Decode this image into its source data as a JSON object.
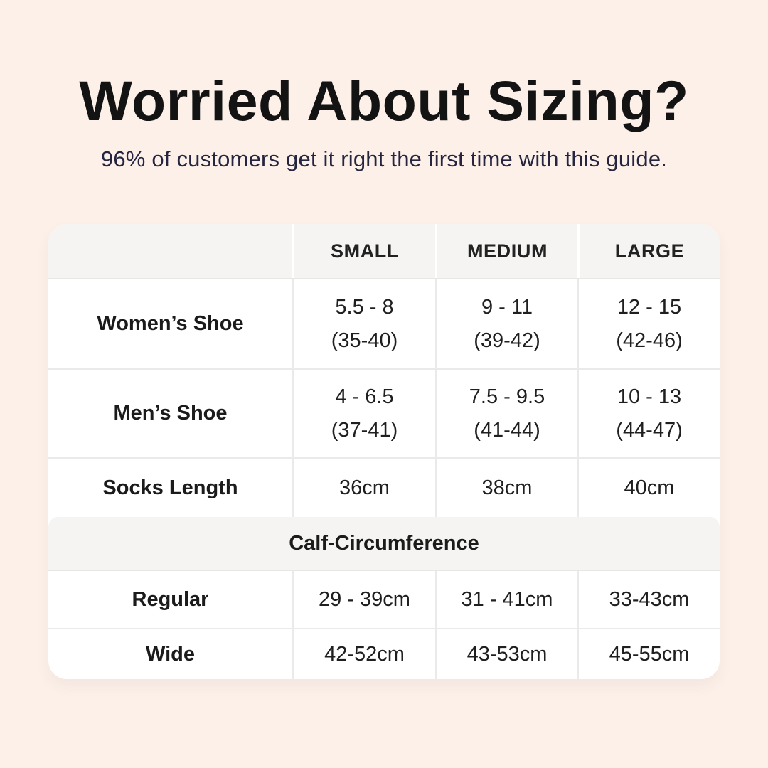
{
  "colors": {
    "page_background": "#fcf0e9",
    "card_background": "#ffffff",
    "band_background": "#f5f4f2",
    "gridline": "#eceae8",
    "title_text": "#131313",
    "subtitle_text": "#25253f",
    "table_text": "#1f1f1f"
  },
  "header": {
    "title": "Worried About Sizing?",
    "subtitle": "96% of customers get it right the first time with this guide."
  },
  "table": {
    "columns": [
      "SMALL",
      "MEDIUM",
      "LARGE"
    ],
    "rows": [
      {
        "label": "Women’s Shoe",
        "values": [
          {
            "line1": "5.5 - 8",
            "line2": "(35-40)"
          },
          {
            "line1": "9 - 11",
            "line2": "(39-42)"
          },
          {
            "line1": "12 - 15",
            "line2": "(42-46)"
          }
        ]
      },
      {
        "label": "Men’s Shoe",
        "values": [
          {
            "line1": "4 - 6.5",
            "line2": "(37-41)"
          },
          {
            "line1": "7.5 - 9.5",
            "line2": "(41-44)"
          },
          {
            "line1": "10 - 13",
            "line2": "(44-47)"
          }
        ]
      },
      {
        "label": "Socks Length",
        "values": [
          {
            "line1": "36cm"
          },
          {
            "line1": "38cm"
          },
          {
            "line1": "40cm"
          }
        ]
      }
    ],
    "section": {
      "title": "Calf-Circumference"
    },
    "section_rows": [
      {
        "label": "Regular",
        "values": [
          {
            "line1": "29 - 39cm"
          },
          {
            "line1": "31 - 41cm"
          },
          {
            "line1": "33-43cm"
          }
        ]
      },
      {
        "label": "Wide",
        "values": [
          {
            "line1": "42-52cm"
          },
          {
            "line1": "43-53cm"
          },
          {
            "line1": "45-55cm"
          }
        ]
      }
    ]
  }
}
